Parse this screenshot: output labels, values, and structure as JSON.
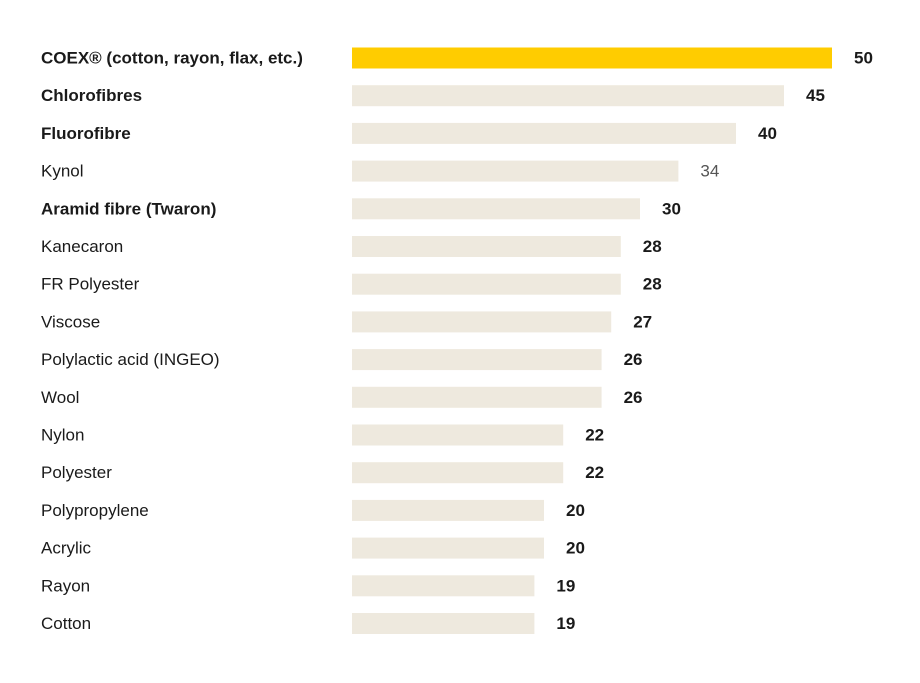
{
  "chart_data": {
    "type": "bar",
    "orientation": "horizontal",
    "title": "",
    "xlabel": "",
    "ylabel": "",
    "xlim": [
      0,
      50
    ],
    "grid": false,
    "legend": "none",
    "categories": [
      "COEX® (cotton, rayon, flax, etc.)",
      "Chlorofibres",
      "Fluorofibre",
      "Kynol",
      "Aramid fibre (Twaron)",
      "Kanecaron",
      "FR Polyester",
      "Viscose",
      "Polylactic acid (INGEO)",
      "Wool",
      "Nylon",
      "Polyester",
      "Polypropylene",
      "Acrylic",
      "Rayon",
      "Cotton"
    ],
    "values": [
      50,
      45,
      40,
      34,
      30,
      28,
      28,
      27,
      26,
      26,
      22,
      22,
      20,
      20,
      19,
      19
    ],
    "value_labels": [
      "50",
      "45",
      "40",
      "34",
      "30",
      "28",
      "28",
      "27",
      "26",
      "26",
      "22",
      "22",
      "20",
      "20",
      "19",
      "19"
    ],
    "bold_labels": [
      true,
      true,
      true,
      false,
      true,
      false,
      false,
      false,
      false,
      false,
      false,
      false,
      false,
      false,
      false,
      false
    ],
    "muted_value_labels": [
      false,
      false,
      false,
      true,
      false,
      false,
      false,
      false,
      false,
      false,
      false,
      false,
      false,
      false,
      false,
      false
    ],
    "highlight_index": 0,
    "colors": {
      "highlight": "#FFCC00",
      "bar": "#EEE9DE",
      "text": "#1A1A1A",
      "muted_text": "#555555"
    }
  }
}
